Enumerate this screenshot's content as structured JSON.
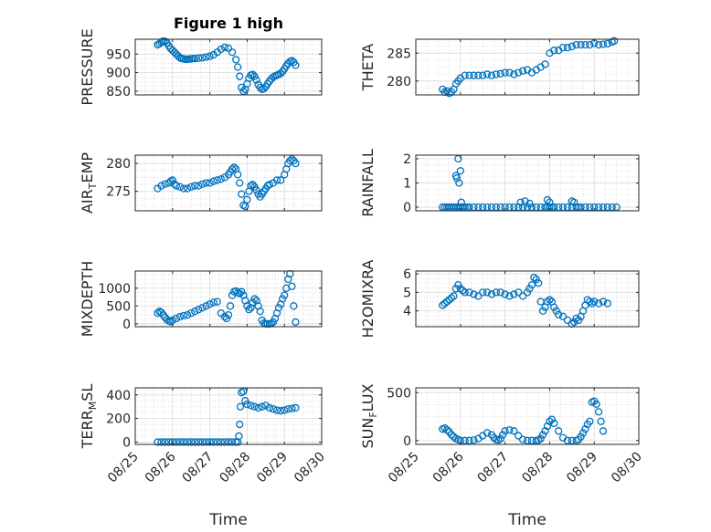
{
  "figure": {
    "title": "Figure 1 high"
  },
  "colors": {
    "marker": "#0072BD",
    "axis": "#262626",
    "grid": "#c8c8c8"
  },
  "chart_data": [
    {
      "type": "scatter",
      "id": "pressure",
      "ylabel": "PRESSURE",
      "ylim": [
        840,
        990
      ],
      "yticks": [
        850,
        900,
        950
      ],
      "xlim": [
        0,
        5
      ],
      "grid": true,
      "title": "Figure 1 high",
      "x": [
        0.6,
        0.65,
        0.7,
        0.75,
        0.8,
        0.85,
        0.9,
        0.95,
        1.0,
        1.05,
        1.1,
        1.15,
        1.2,
        1.25,
        1.3,
        1.35,
        1.4,
        1.45,
        1.5,
        1.55,
        1.6,
        1.7,
        1.8,
        1.9,
        2.0,
        2.1,
        2.2,
        2.3,
        2.4,
        2.5,
        2.6,
        2.7,
        2.75,
        2.8,
        2.85,
        2.9,
        2.95,
        3.0,
        3.05,
        3.1,
        3.15,
        3.2,
        3.25,
        3.3,
        3.35,
        3.4,
        3.45,
        3.5,
        3.55,
        3.6,
        3.65,
        3.7,
        3.75,
        3.8,
        3.85,
        3.9,
        3.95,
        4.0,
        4.05,
        4.1,
        4.15,
        4.2,
        4.25,
        4.3
      ],
      "y": [
        975,
        978,
        982,
        985,
        984,
        980,
        972,
        965,
        960,
        955,
        950,
        945,
        940,
        938,
        937,
        936,
        936,
        937,
        937,
        938,
        938,
        939,
        940,
        942,
        944,
        948,
        955,
        963,
        968,
        966,
        955,
        935,
        915,
        890,
        860,
        850,
        855,
        870,
        885,
        893,
        895,
        890,
        880,
        868,
        860,
        855,
        857,
        862,
        870,
        877,
        883,
        888,
        891,
        893,
        895,
        898,
        903,
        910,
        918,
        925,
        930,
        932,
        928,
        920
      ]
    },
    {
      "type": "scatter",
      "id": "theta",
      "ylabel": "THETA",
      "ylim": [
        277.5,
        287.5
      ],
      "yticks": [
        280,
        285
      ],
      "xlim": [
        0,
        5
      ],
      "grid": true,
      "x": [
        0.6,
        0.65,
        0.7,
        0.75,
        0.8,
        0.85,
        0.9,
        0.95,
        1.0,
        1.1,
        1.2,
        1.3,
        1.4,
        1.5,
        1.6,
        1.7,
        1.8,
        1.9,
        2.0,
        2.1,
        2.2,
        2.3,
        2.4,
        2.5,
        2.6,
        2.7,
        2.8,
        2.9,
        3.0,
        3.1,
        3.2,
        3.3,
        3.4,
        3.5,
        3.6,
        3.7,
        3.8,
        3.9,
        4.0,
        4.1,
        4.2,
        4.3,
        4.4,
        4.45
      ],
      "y": [
        278.5,
        278.0,
        278.2,
        277.8,
        278.0,
        278.5,
        279.5,
        280.0,
        280.5,
        281.0,
        281.0,
        281.0,
        281.0,
        281.0,
        281.2,
        281.0,
        281.2,
        281.3,
        281.5,
        281.5,
        281.2,
        281.5,
        281.8,
        282.0,
        281.5,
        282.0,
        282.5,
        283.0,
        285.0,
        285.5,
        285.5,
        286.0,
        286.0,
        286.2,
        286.5,
        286.5,
        286.5,
        286.5,
        286.8,
        286.5,
        286.6,
        286.7,
        287.0,
        287.2
      ]
    },
    {
      "type": "scatter",
      "id": "air_temp",
      "ylabel": "AIR",
      "ylabel_sub": "T",
      "ylabel_rest": "EMP",
      "ylim": [
        271.5,
        281.5
      ],
      "yticks": [
        275,
        280
      ],
      "xlim": [
        0,
        5
      ],
      "grid": true,
      "x": [
        0.6,
        0.7,
        0.8,
        0.9,
        0.95,
        1.0,
        1.05,
        1.1,
        1.2,
        1.3,
        1.4,
        1.5,
        1.6,
        1.7,
        1.8,
        1.9,
        2.0,
        2.1,
        2.2,
        2.3,
        2.4,
        2.5,
        2.55,
        2.6,
        2.65,
        2.7,
        2.75,
        2.8,
        2.85,
        2.9,
        2.95,
        3.0,
        3.05,
        3.1,
        3.15,
        3.2,
        3.25,
        3.3,
        3.35,
        3.4,
        3.45,
        3.5,
        3.55,
        3.6,
        3.7,
        3.8,
        3.9,
        4.0,
        4.05,
        4.1,
        4.15,
        4.2,
        4.25,
        4.3
      ],
      "y": [
        275.5,
        276.0,
        276.3,
        276.5,
        276.8,
        277.0,
        276.3,
        276.0,
        275.8,
        275.5,
        275.5,
        275.8,
        276.0,
        276.0,
        276.3,
        276.5,
        276.5,
        276.8,
        277.0,
        277.2,
        277.5,
        278.0,
        278.5,
        279.0,
        279.3,
        279.0,
        278.0,
        276.5,
        274.5,
        272.5,
        272.3,
        273.5,
        275.0,
        276.0,
        276.2,
        275.8,
        275.2,
        274.5,
        274.0,
        274.5,
        275.0,
        275.5,
        276.0,
        276.2,
        276.5,
        277.0,
        277.0,
        278.0,
        279.0,
        280.0,
        280.5,
        280.8,
        280.5,
        280.0
      ]
    },
    {
      "type": "scatter",
      "id": "rainfall",
      "ylabel": "RAINFALL",
      "ylim": [
        -0.15,
        2.15
      ],
      "yticks": [
        0,
        1,
        2
      ],
      "xlim": [
        0,
        5
      ],
      "grid": true,
      "x": [
        0.6,
        0.65,
        0.7,
        0.75,
        0.8,
        0.85,
        0.9,
        0.95,
        1.0,
        1.05,
        1.1,
        1.15,
        1.2,
        1.3,
        1.4,
        1.5,
        1.6,
        1.7,
        1.8,
        1.9,
        2.0,
        2.1,
        2.2,
        2.3,
        2.4,
        2.5,
        2.6,
        2.7,
        2.8,
        2.9,
        2.95,
        3.0,
        3.05,
        3.1,
        3.2,
        3.3,
        3.4,
        3.5,
        3.6,
        3.65,
        3.7,
        3.8,
        3.9,
        4.0,
        4.1,
        4.2,
        4.3,
        4.4,
        4.5,
        0.9,
        0.92,
        0.95,
        0.97,
        1.0,
        1.02,
        2.35,
        2.45,
        2.55,
        2.95,
        3.0,
        3.5,
        3.55
      ],
      "y": [
        0,
        0,
        0,
        0,
        0,
        0,
        0,
        0,
        0,
        0,
        0,
        0,
        0,
        0,
        0,
        0,
        0,
        0,
        0,
        0,
        0,
        0,
        0,
        0,
        0,
        0,
        0,
        0,
        0,
        0,
        0,
        0,
        0,
        0,
        0,
        0,
        0,
        0,
        0,
        0,
        0,
        0,
        0,
        0,
        0,
        0,
        0,
        0,
        0,
        1.3,
        1.2,
        2.0,
        1.0,
        1.5,
        0.2,
        0.2,
        0.25,
        0.15,
        0.3,
        0.2,
        0.25,
        0.2
      ]
    },
    {
      "type": "scatter",
      "id": "mixdepth",
      "ylabel": "MIXDEPTH",
      "ylim": [
        -80,
        1480
      ],
      "yticks": [
        0,
        500,
        1000
      ],
      "xlim": [
        0,
        5
      ],
      "grid": true,
      "x": [
        0.6,
        0.65,
        0.7,
        0.75,
        0.8,
        0.85,
        0.9,
        0.95,
        1.0,
        1.1,
        1.2,
        1.3,
        1.4,
        1.5,
        1.6,
        1.7,
        1.8,
        1.9,
        2.0,
        2.1,
        2.2,
        2.3,
        2.4,
        2.45,
        2.5,
        2.55,
        2.6,
        2.65,
        2.7,
        2.75,
        2.8,
        2.85,
        2.9,
        2.95,
        3.0,
        3.05,
        3.1,
        3.15,
        3.2,
        3.25,
        3.3,
        3.35,
        3.4,
        3.45,
        3.5,
        3.55,
        3.6,
        3.65,
        3.7,
        3.75,
        3.8,
        3.85,
        3.9,
        3.95,
        4.0,
        4.05,
        4.1,
        4.15,
        4.2,
        4.25,
        4.3
      ],
      "y": [
        300,
        350,
        320,
        250,
        180,
        120,
        80,
        60,
        100,
        150,
        200,
        230,
        250,
        300,
        350,
        400,
        450,
        500,
        550,
        600,
        620,
        300,
        200,
        150,
        250,
        500,
        800,
        900,
        920,
        870,
        850,
        900,
        800,
        650,
        500,
        400,
        450,
        600,
        700,
        650,
        500,
        350,
        100,
        20,
        0,
        0,
        0,
        10,
        50,
        150,
        300,
        450,
        550,
        700,
        800,
        1000,
        1250,
        1400,
        1050,
        500,
        50
      ]
    },
    {
      "type": "scatter",
      "id": "h2omixra",
      "ylabel": "H2OMIXRA",
      "ylim": [
        3.15,
        6.15
      ],
      "yticks": [
        4,
        5,
        6
      ],
      "xlim": [
        0,
        5
      ],
      "grid": true,
      "x": [
        0.6,
        0.65,
        0.7,
        0.75,
        0.8,
        0.85,
        0.9,
        0.95,
        1.0,
        1.05,
        1.1,
        1.2,
        1.3,
        1.4,
        1.5,
        1.6,
        1.7,
        1.8,
        1.9,
        2.0,
        2.1,
        2.2,
        2.3,
        2.4,
        2.5,
        2.55,
        2.6,
        2.65,
        2.7,
        2.75,
        2.8,
        2.85,
        2.9,
        2.95,
        3.0,
        3.05,
        3.1,
        3.15,
        3.2,
        3.3,
        3.4,
        3.5,
        3.55,
        3.6,
        3.65,
        3.7,
        3.75,
        3.8,
        3.85,
        3.9,
        3.95,
        4.0,
        4.1,
        4.2,
        4.3
      ],
      "y": [
        4.3,
        4.4,
        4.5,
        4.6,
        4.7,
        4.8,
        5.2,
        5.4,
        5.2,
        5.1,
        5.0,
        5.0,
        4.9,
        4.8,
        5.0,
        5.0,
        4.9,
        5.0,
        5.0,
        4.9,
        4.8,
        4.9,
        5.0,
        4.8,
        5.0,
        5.2,
        5.4,
        5.8,
        5.7,
        5.5,
        4.5,
        4.0,
        4.2,
        4.5,
        4.6,
        4.5,
        4.2,
        4.0,
        3.8,
        3.7,
        3.5,
        3.3,
        3.4,
        3.6,
        3.5,
        3.7,
        4.0,
        4.3,
        4.6,
        4.5,
        4.4,
        4.5,
        4.4,
        4.5,
        4.4
      ]
    },
    {
      "type": "scatter",
      "id": "terr_msl",
      "ylabel": "TERR",
      "ylabel_sub": "M",
      "ylabel_rest": "SL",
      "ylim": [
        -20,
        460
      ],
      "yticks": [
        0,
        200,
        400
      ],
      "xlim": [
        0,
        5
      ],
      "grid": true,
      "x": [
        0.6,
        0.7,
        0.8,
        0.9,
        1.0,
        1.1,
        1.2,
        1.3,
        1.4,
        1.5,
        1.6,
        1.7,
        1.8,
        1.9,
        2.0,
        2.1,
        2.2,
        2.3,
        2.4,
        2.5,
        2.6,
        2.7,
        2.75,
        2.78,
        2.8,
        2.82,
        2.85,
        2.9,
        2.95,
        3.0,
        3.1,
        3.2,
        3.3,
        3.4,
        3.5,
        3.6,
        3.7,
        3.8,
        3.9,
        4.0,
        4.1,
        4.2,
        4.3
      ],
      "y": [
        0,
        0,
        0,
        0,
        0,
        0,
        0,
        0,
        0,
        0,
        0,
        0,
        0,
        0,
        0,
        0,
        0,
        0,
        0,
        0,
        0,
        0,
        0,
        50,
        150,
        300,
        420,
        430,
        350,
        320,
        310,
        300,
        290,
        300,
        310,
        290,
        280,
        270,
        265,
        270,
        280,
        285,
        290
      ]
    },
    {
      "type": "scatter",
      "id": "sun_flux",
      "ylabel": "SUN",
      "ylabel_sub": "F",
      "ylabel_rest": "LUX",
      "ylim": [
        -40,
        550
      ],
      "yticks": [
        0,
        500
      ],
      "xlim": [
        0,
        5
      ],
      "grid": true,
      "x": [
        0.6,
        0.65,
        0.7,
        0.75,
        0.8,
        0.85,
        0.9,
        0.95,
        1.0,
        1.1,
        1.2,
        1.3,
        1.4,
        1.5,
        1.6,
        1.7,
        1.75,
        1.8,
        1.85,
        1.9,
        1.95,
        2.0,
        2.1,
        2.2,
        2.3,
        2.4,
        2.5,
        2.6,
        2.7,
        2.75,
        2.8,
        2.85,
        2.9,
        2.95,
        3.0,
        3.05,
        3.1,
        3.2,
        3.3,
        3.4,
        3.5,
        3.6,
        3.65,
        3.7,
        3.75,
        3.8,
        3.85,
        3.9,
        3.95,
        4.0,
        4.05,
        4.1,
        4.15,
        4.2
      ],
      "y": [
        120,
        130,
        110,
        90,
        60,
        40,
        20,
        10,
        0,
        0,
        0,
        5,
        20,
        50,
        80,
        60,
        30,
        10,
        5,
        20,
        60,
        100,
        110,
        100,
        50,
        10,
        0,
        0,
        0,
        5,
        20,
        60,
        100,
        150,
        200,
        220,
        180,
        100,
        30,
        0,
        0,
        0,
        10,
        40,
        80,
        120,
        170,
        200,
        400,
        410,
        380,
        300,
        200,
        100
      ]
    }
  ],
  "x_axis": {
    "tick_labels": [
      "08/25",
      "08/26",
      "08/27",
      "08/28",
      "08/29",
      "08/30"
    ],
    "label": "Time"
  }
}
